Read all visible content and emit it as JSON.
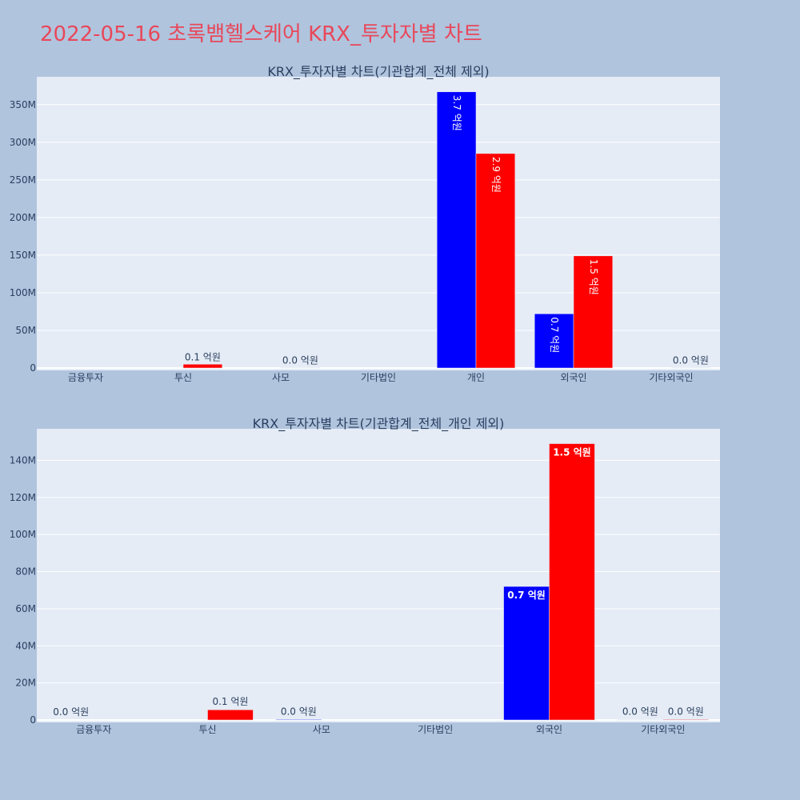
{
  "page": {
    "title": "2022-05-16 초록뱀헬스케어 KRX_투자자별 차트"
  },
  "colors": {
    "background": "#b0c4de",
    "plot_bg": "#e5ecf6",
    "title": "#e8485a",
    "buy": "#0000ff",
    "sell": "#ff0000"
  },
  "chart_data": [
    {
      "type": "bar",
      "title": "KRX_투자자별 차트(기관합계_전체 제외)",
      "categories": [
        "금융투자",
        "투신",
        "사모",
        "기타법인",
        "개인",
        "외국인",
        "기타외국인"
      ],
      "series": [
        {
          "color": "#0000ff",
          "values": [
            0,
            0,
            0,
            0,
            367000000,
            72000000,
            0
          ],
          "labels": [
            "",
            "",
            "",
            "",
            "3.7 억원",
            "0.7 억원",
            ""
          ]
        },
        {
          "color": "#ff0000",
          "values": [
            0,
            5000000,
            500000,
            0,
            285000000,
            149000000,
            500000
          ],
          "labels": [
            "",
            "0.1 억원",
            "0.0 억원",
            "",
            "2.9 억원",
            "1.5 억원",
            "0.0 억원"
          ]
        }
      ],
      "yticks": [
        "0",
        "50M",
        "100M",
        "150M",
        "200M",
        "250M",
        "300M",
        "350M"
      ],
      "ytick_values": [
        0,
        50000000,
        100000000,
        150000000,
        200000000,
        250000000,
        300000000,
        350000000
      ],
      "ylim": [
        0,
        387000000
      ],
      "grid": true,
      "label_rotation": 90
    },
    {
      "type": "bar",
      "title": "KRX_투자자별 차트(기관합계_전체_개인 제외)",
      "categories": [
        "금융투자",
        "투신",
        "사모",
        "기타법인",
        "외국인",
        "기타외국인"
      ],
      "series": [
        {
          "color": "#0000ff",
          "values": [
            0,
            0,
            300000,
            0,
            72000000,
            200000
          ],
          "labels": [
            "0.0 억원",
            "",
            "0.0 억원",
            "",
            "0.7 억원",
            "0.0 억원"
          ]
        },
        {
          "color": "#ff0000",
          "values": [
            0,
            5500000,
            0,
            0,
            149000000,
            300000
          ],
          "labels": [
            "",
            "0.1 억원",
            "",
            "",
            "1.5 억원",
            "0.0 억원"
          ]
        }
      ],
      "yticks": [
        "0",
        "20M",
        "40M",
        "60M",
        "80M",
        "100M",
        "120M",
        "140M"
      ],
      "ytick_values": [
        0,
        20000000,
        40000000,
        60000000,
        80000000,
        100000000,
        120000000,
        140000000
      ],
      "ylim": [
        0,
        157000000
      ],
      "grid": true,
      "label_rotation": 0
    }
  ]
}
